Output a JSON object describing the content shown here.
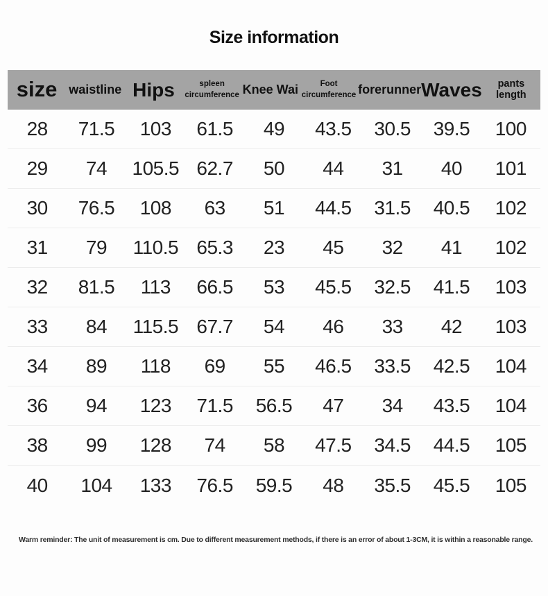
{
  "page": {
    "title": "Size information"
  },
  "table": {
    "columns": [
      {
        "key": "size",
        "label": "size",
        "lines": [
          "size"
        ],
        "style": "xl"
      },
      {
        "key": "waistline",
        "label": "waistline",
        "lines": [
          "waistline"
        ],
        "style": "md"
      },
      {
        "key": "hips",
        "label": "Hips",
        "lines": [
          "Hips"
        ],
        "style": "lg"
      },
      {
        "key": "spleen",
        "label": "spleen circumference",
        "lines": [
          "spleen",
          "circumference"
        ],
        "style": "sm"
      },
      {
        "key": "knee",
        "label": "Knee Wai",
        "lines": [
          "Knee Wai"
        ],
        "style": "md"
      },
      {
        "key": "foot",
        "label": "Foot circumference",
        "lines": [
          "Foot",
          "circumference"
        ],
        "style": "sm"
      },
      {
        "key": "forerunner",
        "label": "forerunner",
        "lines": [
          "forerunner"
        ],
        "style": "md"
      },
      {
        "key": "waves",
        "label": "Waves",
        "lines": [
          "Waves"
        ],
        "style": "lg"
      },
      {
        "key": "pants",
        "label": "pants length",
        "lines": [
          "pants length"
        ],
        "style": "smb"
      }
    ],
    "rows": [
      [
        "28",
        "71.5",
        "103",
        "61.5",
        "49",
        "43.5",
        "30.5",
        "39.5",
        "100"
      ],
      [
        "29",
        "74",
        "105.5",
        "62.7",
        "50",
        "44",
        "31",
        "40",
        "101"
      ],
      [
        "30",
        "76.5",
        "108",
        "63",
        "51",
        "44.5",
        "31.5",
        "40.5",
        "102"
      ],
      [
        "31",
        "79",
        "110.5",
        "65.3",
        "23",
        "45",
        "32",
        "41",
        "102"
      ],
      [
        "32",
        "81.5",
        "113",
        "66.5",
        "53",
        "45.5",
        "32.5",
        "41.5",
        "103"
      ],
      [
        "33",
        "84",
        "115.5",
        "67.7",
        "54",
        "46",
        "33",
        "42",
        "103"
      ],
      [
        "34",
        "89",
        "118",
        "69",
        "55",
        "46.5",
        "33.5",
        "42.5",
        "104"
      ],
      [
        "36",
        "94",
        "123",
        "71.5",
        "56.5",
        "47",
        "34",
        "43.5",
        "104"
      ],
      [
        "38",
        "99",
        "128",
        "74",
        "58",
        "47.5",
        "34.5",
        "44.5",
        "105"
      ],
      [
        "40",
        "104",
        "133",
        "76.5",
        "59.5",
        "48",
        "35.5",
        "45.5",
        "105"
      ]
    ]
  },
  "footer": {
    "reminder": "Warm reminder: The unit of measurement is cm. Due to different measurement methods, if there is an error of about 1-3CM, it is within a reasonable range."
  },
  "colors": {
    "header_bg": "#a4a4a4",
    "row_divider": "#ececec",
    "title_text": "#111111",
    "cell_text": "#222222"
  }
}
